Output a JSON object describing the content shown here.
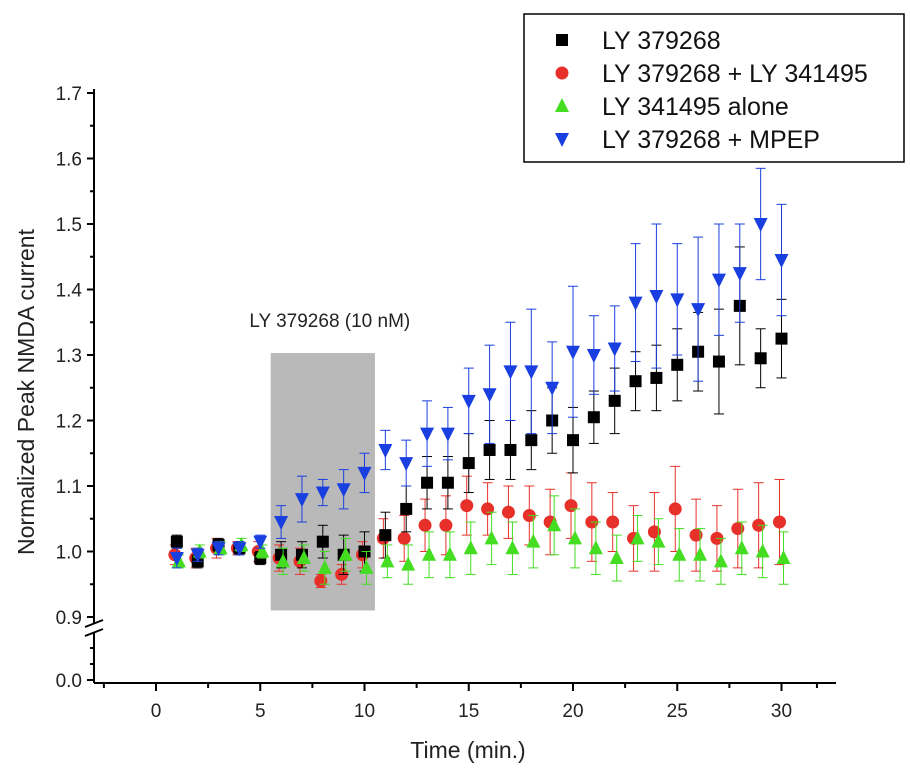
{
  "chart_data": {
    "type": "scatter",
    "title": "",
    "xlabel": "Time (min.)",
    "ylabel": "Normalized Peak NMDA current",
    "xlim": [
      -3,
      32
    ],
    "x_ticks": [
      0,
      5,
      10,
      15,
      20,
      25,
      30
    ],
    "x_tick_labels": [
      "0",
      "5",
      "10",
      "15",
      "20",
      "25",
      "30"
    ],
    "y_ticks_upper": [
      0.9,
      1.0,
      1.1,
      1.2,
      1.3,
      1.4,
      1.5,
      1.6,
      1.7
    ],
    "y_tick_labels_upper": [
      "0.9",
      "1.0",
      "1.1",
      "1.2",
      "1.3",
      "1.4",
      "1.5",
      "1.6",
      "1.7"
    ],
    "y_tick_labels_lower": [
      "0.0"
    ],
    "y_axis_break": [
      0.0,
      0.9
    ],
    "grid": false,
    "legend_position": "top-right",
    "annotation": {
      "label": "LY 379268 (10 nM)",
      "x_range": [
        5.5,
        10.5
      ],
      "colors": {
        "fill": "#b9b9b9"
      }
    },
    "x": [
      1,
      2,
      3,
      4,
      5,
      6,
      7,
      8,
      9,
      10,
      11,
      12,
      13,
      14,
      15,
      16,
      17,
      18,
      19,
      20,
      21,
      22,
      23,
      24,
      25,
      26,
      27,
      28,
      29,
      30
    ],
    "series": [
      {
        "name": "LY 379268",
        "marker": "square",
        "color": "#000000",
        "values": [
          1.015,
          0.985,
          1.01,
          1.005,
          0.99,
          0.995,
          0.995,
          1.015,
          0.995,
          1.0,
          1.025,
          1.065,
          1.105,
          1.105,
          1.135,
          1.155,
          1.155,
          1.17,
          1.2,
          1.17,
          1.205,
          1.23,
          1.26,
          1.265,
          1.285,
          1.305,
          1.29,
          1.375,
          1.295,
          1.325
        ],
        "errors": [
          0.01,
          0.01,
          0.01,
          0.01,
          0.01,
          0.02,
          0.02,
          0.025,
          0.03,
          0.03,
          0.035,
          0.035,
          0.04,
          0.04,
          0.045,
          0.045,
          0.045,
          0.045,
          0.05,
          0.05,
          0.04,
          0.05,
          0.045,
          0.05,
          0.055,
          0.06,
          0.08,
          0.09,
          0.045,
          0.06
        ]
      },
      {
        "name": "LY 379268 + LY 341495",
        "marker": "circle",
        "color": "#e8302a",
        "values": [
          0.995,
          0.99,
          1.005,
          1.005,
          1.0,
          0.99,
          0.985,
          0.955,
          0.965,
          0.995,
          1.02,
          1.02,
          1.04,
          1.04,
          1.07,
          1.065,
          1.06,
          1.055,
          1.045,
          1.07,
          1.045,
          1.045,
          1.02,
          1.03,
          1.065,
          1.025,
          1.02,
          1.035,
          1.04,
          1.045
        ],
        "errors": [
          0.015,
          0.015,
          0.015,
          0.01,
          0.015,
          0.02,
          0.02,
          0.01,
          0.015,
          0.02,
          0.03,
          0.035,
          0.04,
          0.045,
          0.045,
          0.04,
          0.04,
          0.045,
          0.05,
          0.05,
          0.06,
          0.045,
          0.05,
          0.06,
          0.065,
          0.055,
          0.05,
          0.06,
          0.065,
          0.065
        ]
      },
      {
        "name": "LY 341495 alone",
        "marker": "triangle-up",
        "color": "#44dd22",
        "values": [
          0.985,
          1.0,
          1.005,
          1.01,
          1.0,
          0.985,
          0.99,
          0.975,
          0.995,
          0.975,
          0.985,
          0.98,
          0.995,
          0.995,
          1.005,
          1.02,
          1.005,
          1.015,
          1.04,
          1.02,
          1.005,
          0.99,
          1.02,
          1.015,
          0.995,
          0.995,
          0.985,
          1.005,
          1.0,
          0.99
        ],
        "errors": [
          0.01,
          0.01,
          0.01,
          0.01,
          0.01,
          0.02,
          0.02,
          0.025,
          0.025,
          0.025,
          0.025,
          0.03,
          0.035,
          0.035,
          0.04,
          0.04,
          0.04,
          0.04,
          0.045,
          0.045,
          0.04,
          0.035,
          0.035,
          0.035,
          0.04,
          0.04,
          0.035,
          0.04,
          0.04,
          0.04
        ]
      },
      {
        "name": "LY 379268 + MPEP",
        "marker": "triangle-down",
        "color": "#1a3fe0",
        "values": [
          0.99,
          0.995,
          1.005,
          1.005,
          1.015,
          1.045,
          1.08,
          1.09,
          1.095,
          1.12,
          1.155,
          1.135,
          1.18,
          1.18,
          1.23,
          1.24,
          1.275,
          1.275,
          1.25,
          1.305,
          1.3,
          1.31,
          1.38,
          1.39,
          1.385,
          1.37,
          1.415,
          1.425,
          1.5,
          1.445
        ],
        "errors": [
          0.015,
          0.01,
          0.01,
          0.01,
          0.01,
          0.025,
          0.035,
          0.02,
          0.03,
          0.03,
          0.03,
          0.035,
          0.05,
          0.04,
          0.05,
          0.075,
          0.075,
          0.095,
          0.07,
          0.1,
          0.06,
          0.065,
          0.09,
          0.11,
          0.085,
          0.11,
          0.085,
          0.075,
          0.085,
          0.085
        ]
      }
    ]
  }
}
